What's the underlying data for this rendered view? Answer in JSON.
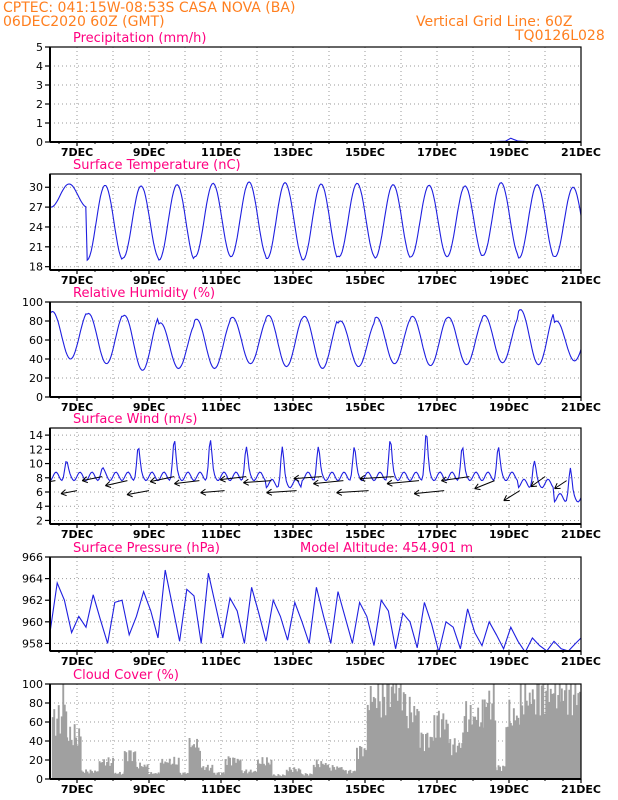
{
  "header": {
    "line1_left": "CPTEC:    041:15W-08:53S   CASA NOVA (BA)",
    "line2_left": "06DEC2020 60Z (GMT)",
    "line1_right": "Vertical Grid Line: 60Z",
    "line2_right": "TQ0126L028"
  },
  "x_axis": {
    "tick_labels": [
      "7DEC",
      "9DEC",
      "11DEC",
      "13DEC",
      "15DEC",
      "17DEC",
      "19DEC",
      "21DEC"
    ],
    "tick_days": [
      7,
      9,
      11,
      13,
      15,
      17,
      19,
      21
    ],
    "x_range_days": [
      6.25,
      21.0
    ]
  },
  "colors": {
    "title": "#ff0080",
    "header": "#ff7f1f",
    "series": "#1f1fe0",
    "axis": "#000000",
    "grid": "#999999",
    "bar": "#a0a0a0"
  },
  "chart_data": [
    {
      "name": "precipitation",
      "type": "line",
      "title": "Precipitation (mm/h)",
      "ylim": [
        0,
        5
      ],
      "yticks": [
        0,
        1,
        2,
        3,
        4,
        5
      ],
      "x": [
        6.25,
        8.0,
        10.0,
        12.0,
        14.0,
        16.0,
        17.5,
        18.6,
        18.9,
        19.05,
        19.15,
        19.25,
        19.5,
        20.0,
        21.0
      ],
      "y": [
        0,
        0,
        0,
        0,
        0,
        0,
        0.01,
        0.02,
        0.04,
        0.2,
        0.12,
        0.05,
        0.02,
        0.01,
        0
      ],
      "grid": true
    },
    {
      "name": "surface_temperature",
      "type": "line",
      "title": "Surface Temperature (nC)",
      "ylim": [
        17.5,
        32
      ],
      "yticks": [
        18,
        21,
        24,
        27,
        30
      ],
      "cycle": {
        "max_hour": 0.78,
        "min_hour": 0.25
      },
      "daily_max": [
        30.5,
        30.3,
        30.2,
        30.4,
        30.6,
        30.8,
        30.7,
        30.5,
        30.6,
        30.4,
        30.3,
        30.2,
        30.7,
        30.4,
        30.0,
        28.8,
        29.3
      ],
      "daily_min": [
        27.0,
        19.0,
        19.3,
        19.0,
        19.5,
        19.5,
        19.2,
        19.0,
        19.5,
        19.3,
        19.5,
        19.5,
        19.7,
        19.3,
        19.5,
        20.5,
        21.0
      ],
      "start_day": 6.25,
      "grid": true
    },
    {
      "name": "relative_humidity",
      "type": "line",
      "title": "Relative Humidity (%)",
      "ylim": [
        0,
        100
      ],
      "yticks": [
        0,
        20,
        40,
        60,
        80,
        100
      ],
      "cycle": {
        "max_hour": 0.32,
        "min_hour": 0.78
      },
      "daily_max": [
        90,
        88,
        86,
        78,
        82,
        84,
        86,
        85,
        80,
        84,
        85,
        84,
        86,
        92,
        80,
        70,
        72
      ],
      "daily_min": [
        40,
        35,
        28,
        30,
        30,
        35,
        32,
        30,
        32,
        35,
        33,
        34,
        36,
        34,
        38,
        48,
        40
      ],
      "start_day": 6.25,
      "grid": true
    },
    {
      "name": "surface_wind",
      "type": "line",
      "title": "Surface Wind (m/s)",
      "ylim": [
        1.5,
        15
      ],
      "yticks": [
        2,
        4,
        6,
        8,
        10,
        12,
        14
      ],
      "daily_peak": [
        10,
        9,
        12,
        13,
        13,
        12,
        12,
        12,
        12,
        13,
        14,
        12,
        12,
        10,
        9,
        7,
        9
      ],
      "daily_base": [
        7,
        7,
        7,
        7,
        7,
        7,
        6,
        7,
        7,
        7,
        7,
        7,
        7,
        6,
        4,
        3,
        6
      ],
      "start_day": 6.25,
      "vectors": {
        "days": [
          6.4,
          7.0,
          7.7,
          8.4,
          9.0,
          9.7,
          10.4,
          11.1,
          11.7,
          12.4,
          13.1,
          13.8,
          14.4,
          15.1,
          15.8,
          16.5,
          17.2,
          17.9,
          18.6,
          19.3,
          20.0,
          20.6
        ],
        "dx": [
          18,
          16,
          20,
          22,
          22,
          24,
          25,
          24,
          26,
          28,
          30,
          28,
          30,
          32,
          34,
          32,
          30,
          28,
          20,
          16,
          14,
          12
        ],
        "dy": [
          3,
          3,
          4,
          5,
          4,
          5,
          3,
          2,
          3,
          2,
          2,
          2,
          3,
          2,
          2,
          3,
          3,
          4,
          8,
          10,
          10,
          8
        ]
      },
      "grid": true
    },
    {
      "name": "surface_pressure",
      "type": "line",
      "title": "Surface Pressure (hPa)",
      "annotation_label": "Model Altitude:",
      "annotation_value": "454.901",
      "annotation_unit": "m",
      "ylim": [
        957.3,
        966
      ],
      "yticks": [
        958,
        960,
        962,
        964,
        966
      ],
      "x": [
        6.25,
        6.45,
        6.65,
        6.85,
        7.05,
        7.25,
        7.45,
        7.65,
        7.85,
        8.05,
        8.25,
        8.45,
        8.65,
        8.85,
        9.05,
        9.25,
        9.45,
        9.65,
        9.85,
        10.05,
        10.25,
        10.45,
        10.65,
        10.85,
        11.05,
        11.25,
        11.45,
        11.65,
        11.85,
        12.05,
        12.25,
        12.45,
        12.65,
        12.85,
        13.05,
        13.25,
        13.45,
        13.65,
        13.85,
        14.05,
        14.25,
        14.45,
        14.65,
        14.85,
        15.05,
        15.25,
        15.45,
        15.65,
        15.85,
        16.05,
        16.25,
        16.45,
        16.65,
        16.85,
        17.05,
        17.25,
        17.45,
        17.65,
        17.85,
        18.05,
        18.25,
        18.45,
        18.65,
        18.85,
        19.05,
        19.25,
        19.45,
        19.65,
        19.85,
        20.05,
        20.25,
        20.45,
        20.65,
        20.85,
        21.0
      ],
      "y": [
        959.0,
        963.6,
        962.0,
        959.0,
        960.5,
        959.5,
        962.5,
        960.2,
        958.0,
        961.8,
        962.0,
        958.8,
        960.5,
        962.8,
        961.0,
        958.5,
        964.8,
        961.5,
        958.2,
        963.0,
        962.4,
        958.0,
        964.5,
        961.5,
        958.5,
        962.2,
        961.0,
        958.0,
        963.2,
        960.8,
        958.2,
        962.0,
        960.5,
        958.3,
        961.8,
        960.0,
        958.0,
        963.2,
        960.5,
        958.0,
        962.8,
        960.4,
        958.0,
        961.8,
        960.5,
        957.8,
        962.0,
        961.0,
        957.5,
        960.8,
        960.0,
        957.6,
        961.8,
        959.8,
        957.2,
        960.0,
        959.5,
        957.5,
        961.2,
        959.0,
        957.8,
        960.0,
        958.8,
        957.5,
        959.5,
        958.2,
        957.2,
        958.5,
        957.8,
        957.3,
        958.2,
        957.5,
        957.3,
        958.0,
        958.5
      ],
      "grid": true
    },
    {
      "name": "cloud_cover",
      "type": "bar",
      "title": "Cloud Cover (%)",
      "ylim": [
        0,
        100
      ],
      "yticks": [
        0,
        20,
        40,
        60,
        80,
        100
      ],
      "segments": [
        {
          "from": 6.3,
          "to": 6.55,
          "level": 62
        },
        {
          "from": 6.55,
          "to": 6.7,
          "level": 82
        },
        {
          "from": 6.7,
          "to": 7.1,
          "level": 45
        },
        {
          "from": 7.1,
          "to": 7.6,
          "level": 8
        },
        {
          "from": 7.6,
          "to": 8.0,
          "level": 18
        },
        {
          "from": 8.0,
          "to": 8.3,
          "level": 6
        },
        {
          "from": 8.3,
          "to": 8.6,
          "level": 26
        },
        {
          "from": 8.6,
          "to": 8.95,
          "level": 14
        },
        {
          "from": 8.95,
          "to": 9.3,
          "level": 6
        },
        {
          "from": 9.3,
          "to": 9.8,
          "level": 18
        },
        {
          "from": 9.8,
          "to": 10.1,
          "level": 6
        },
        {
          "from": 10.1,
          "to": 10.4,
          "level": 36
        },
        {
          "from": 10.4,
          "to": 10.75,
          "level": 12
        },
        {
          "from": 10.75,
          "to": 11.1,
          "level": 6
        },
        {
          "from": 11.1,
          "to": 11.55,
          "level": 20
        },
        {
          "from": 11.55,
          "to": 12.0,
          "level": 8
        },
        {
          "from": 12.0,
          "to": 12.4,
          "level": 18
        },
        {
          "from": 12.4,
          "to": 12.8,
          "level": 4
        },
        {
          "from": 12.8,
          "to": 13.2,
          "level": 10
        },
        {
          "from": 13.2,
          "to": 13.55,
          "level": 5
        },
        {
          "from": 13.55,
          "to": 13.95,
          "level": 16
        },
        {
          "from": 13.95,
          "to": 14.4,
          "level": 12
        },
        {
          "from": 14.4,
          "to": 14.75,
          "level": 8
        },
        {
          "from": 14.75,
          "to": 15.05,
          "level": 30
        },
        {
          "from": 15.05,
          "to": 15.55,
          "level": 85
        },
        {
          "from": 15.55,
          "to": 16.05,
          "level": 95
        },
        {
          "from": 16.05,
          "to": 16.5,
          "level": 70
        },
        {
          "from": 16.5,
          "to": 16.9,
          "level": 42
        },
        {
          "from": 16.9,
          "to": 17.3,
          "level": 60
        },
        {
          "from": 17.3,
          "to": 17.7,
          "level": 35
        },
        {
          "from": 17.7,
          "to": 18.3,
          "level": 65
        },
        {
          "from": 18.3,
          "to": 18.6,
          "level": 80
        },
        {
          "from": 18.6,
          "to": 18.9,
          "level": 12
        },
        {
          "from": 18.9,
          "to": 19.3,
          "level": 65
        },
        {
          "from": 19.3,
          "to": 19.8,
          "level": 85
        },
        {
          "from": 19.8,
          "to": 20.4,
          "level": 92
        },
        {
          "from": 20.4,
          "to": 21.0,
          "level": 90
        }
      ],
      "grid": true
    }
  ]
}
